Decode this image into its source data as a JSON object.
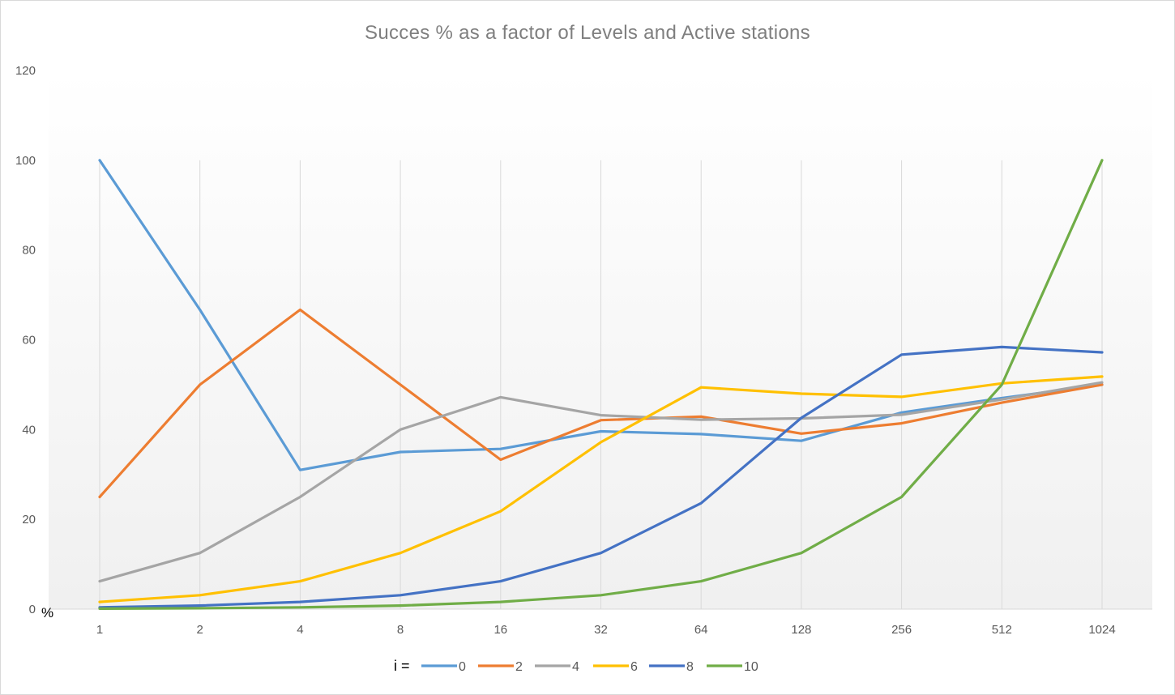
{
  "chart_data": {
    "type": "line",
    "title": "Succes % as a factor of Levels and Active stations",
    "xlabel": "",
    "ylabel": "%",
    "categories": [
      "1",
      "2",
      "4",
      "8",
      "16",
      "32",
      "64",
      "128",
      "256",
      "512",
      "1024"
    ],
    "ylim": [
      0,
      120
    ],
    "yticks": [
      0,
      20,
      40,
      60,
      80,
      100,
      120
    ],
    "grid": "vertical",
    "legend": {
      "position": "bottom",
      "prefix": "i ="
    },
    "series": [
      {
        "name": "0",
        "color": "#5b9bd5",
        "values": [
          100,
          66.7,
          31,
          35,
          35.7,
          39.6,
          39,
          37.5,
          43.8,
          47,
          50
        ]
      },
      {
        "name": "2",
        "color": "#ed7d31",
        "values": [
          25,
          50,
          66.7,
          50,
          33.3,
          42.1,
          42.9,
          39.1,
          41.4,
          46,
          50
        ]
      },
      {
        "name": "4",
        "color": "#a5a5a5",
        "values": [
          6.2,
          12.5,
          25,
          40,
          47.2,
          43.2,
          42.2,
          42.5,
          43.3,
          46.7,
          50.5
        ]
      },
      {
        "name": "6",
        "color": "#ffc000",
        "values": [
          1.6,
          3.1,
          6.2,
          12.5,
          21.8,
          37.2,
          49.4,
          48,
          47.3,
          50.3,
          51.8
        ]
      },
      {
        "name": "8",
        "color": "#4472c4",
        "values": [
          0.4,
          0.8,
          1.6,
          3.1,
          6.2,
          12.5,
          23.6,
          42.6,
          56.7,
          58.4,
          57.2
        ]
      },
      {
        "name": "10",
        "color": "#70ad47",
        "values": [
          0.1,
          0.2,
          0.4,
          0.8,
          1.6,
          3.1,
          6.2,
          12.5,
          25,
          50,
          100
        ]
      }
    ]
  }
}
